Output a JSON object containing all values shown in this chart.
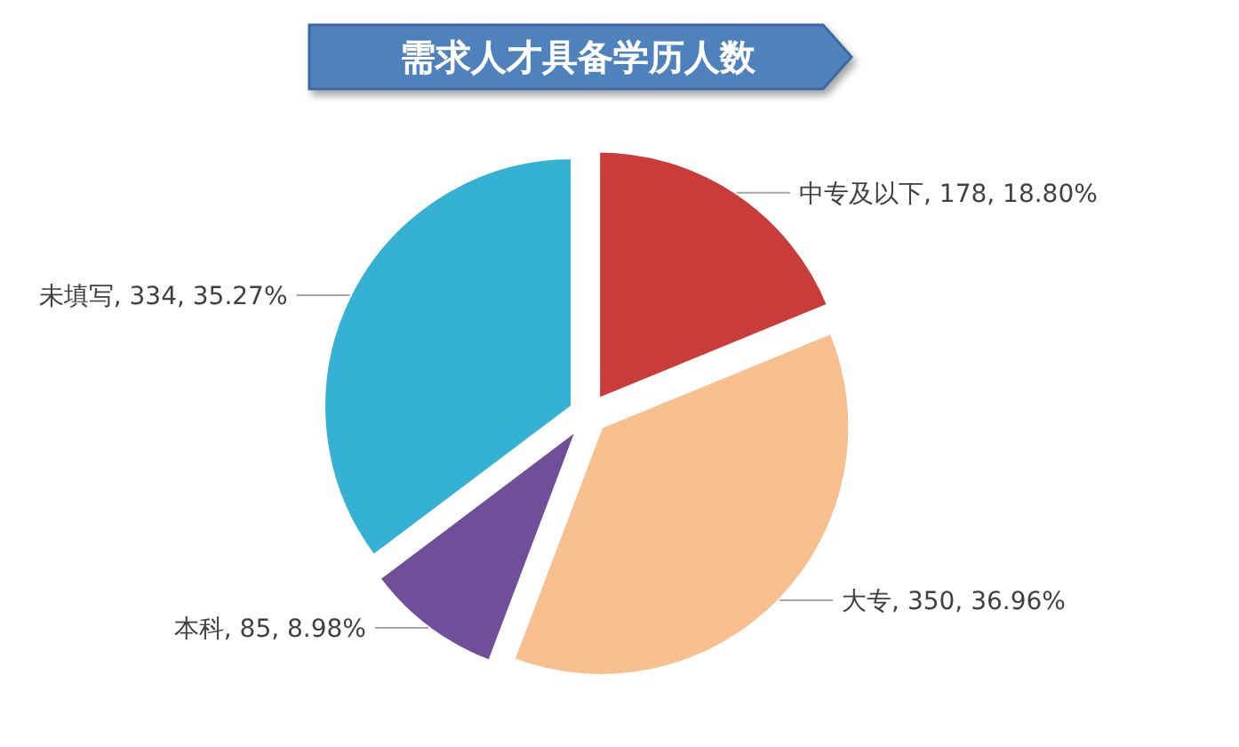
{
  "chart_data": {
    "type": "pie",
    "title": "需求人才具备学历人数",
    "categories": [
      "中专及以下",
      "大专",
      "本科",
      "未填写"
    ],
    "values": [
      178,
      350,
      85,
      334
    ],
    "colors": [
      "#c93c3a",
      "#f8c08f",
      "#6f4f99",
      "#34b1d3"
    ],
    "value_labels": [
      "178, 18.80%",
      "350, 36.96%",
      "85, 8.98%",
      "334, 35.27%"
    ],
    "legend": false
  }
}
